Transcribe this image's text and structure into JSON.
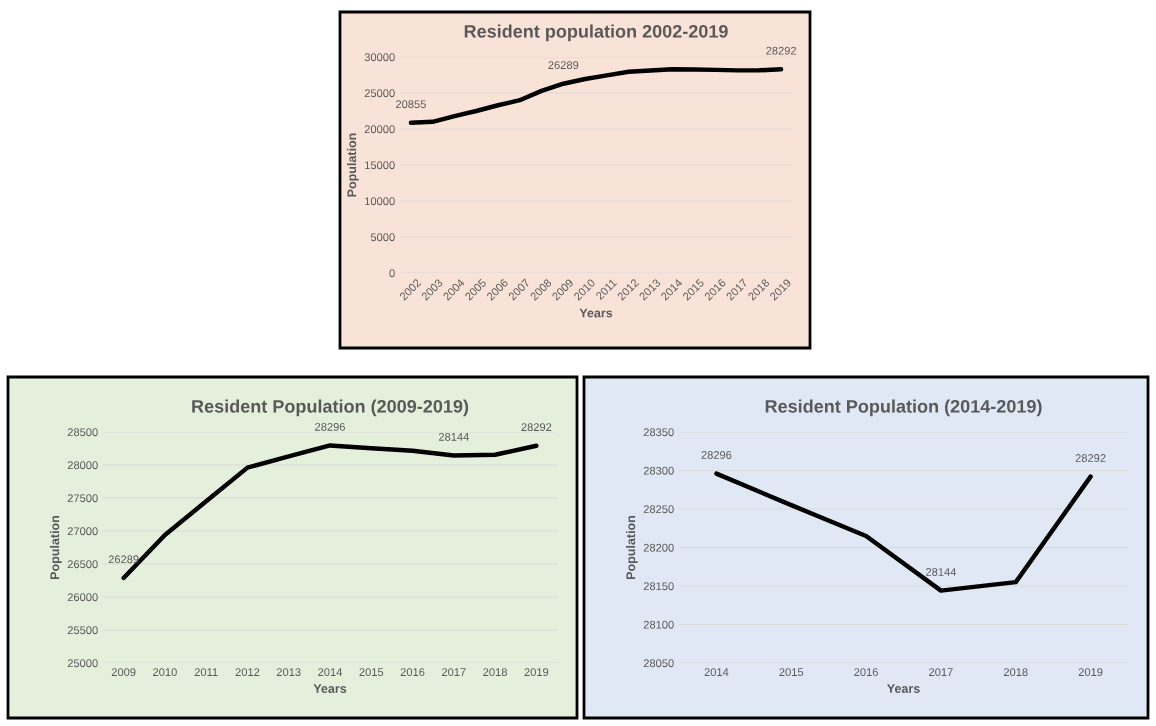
{
  "chart_data": [
    {
      "type": "line",
      "title": "Resident population 2002-2019",
      "xlabel": "Years",
      "ylabel": "Population",
      "categories": [
        "2002",
        "2003",
        "2004",
        "2005",
        "2006",
        "2007",
        "2008",
        "2009",
        "2010",
        "2011",
        "2012",
        "2013",
        "2014",
        "2015",
        "2016",
        "2017",
        "2018",
        "2019"
      ],
      "series": [
        {
          "color": "#000000",
          "values": [
            20855,
            21000,
            21800,
            22500,
            23300,
            24000,
            25300,
            26289,
            26940,
            27450,
            27960,
            28130,
            28296,
            28255,
            28215,
            28144,
            28155,
            28292
          ],
          "value_labels": [
            "20855",
            null,
            null,
            null,
            null,
            null,
            null,
            "26289",
            null,
            null,
            null,
            null,
            null,
            null,
            null,
            null,
            null,
            "28292"
          ]
        }
      ],
      "ylim": [
        0,
        30000
      ],
      "yticks": [
        0,
        5000,
        10000,
        15000,
        20000,
        25000,
        30000
      ],
      "grid": "y",
      "legend": false
    },
    {
      "type": "line",
      "title": "Resident Population (2009-2019)",
      "xlabel": "Years",
      "ylabel": "Population",
      "categories": [
        "2009",
        "2010",
        "2011",
        "2012",
        "2013",
        "2014",
        "2015",
        "2016",
        "2017",
        "2018",
        "2019"
      ],
      "series": [
        {
          "color": "#000000",
          "values": [
            26289,
            26940,
            27450,
            27960,
            28130,
            28296,
            28255,
            28215,
            28144,
            28155,
            28292
          ],
          "value_labels": [
            "26289",
            null,
            null,
            null,
            null,
            "28296",
            null,
            null,
            "28144",
            null,
            "28292"
          ]
        }
      ],
      "ylim": [
        25000,
        28500
      ],
      "yticks": [
        25000,
        25500,
        26000,
        26500,
        27000,
        27500,
        28000,
        28500
      ],
      "grid": "y",
      "legend": false
    },
    {
      "type": "line",
      "title": "Resident Population (2014-2019)",
      "xlabel": "Years",
      "ylabel": "Population",
      "categories": [
        "2014",
        "2015",
        "2016",
        "2017",
        "2018",
        "2019"
      ],
      "series": [
        {
          "color": "#000000",
          "values": [
            28296,
            28255,
            28215,
            28144,
            28155,
            28292
          ],
          "value_labels": [
            "28296",
            null,
            null,
            "28144",
            null,
            "28292"
          ]
        }
      ],
      "ylim": [
        28050,
        28350
      ],
      "yticks": [
        28050,
        28100,
        28150,
        28200,
        28250,
        28300,
        28350
      ],
      "grid": "y",
      "legend": false
    }
  ]
}
